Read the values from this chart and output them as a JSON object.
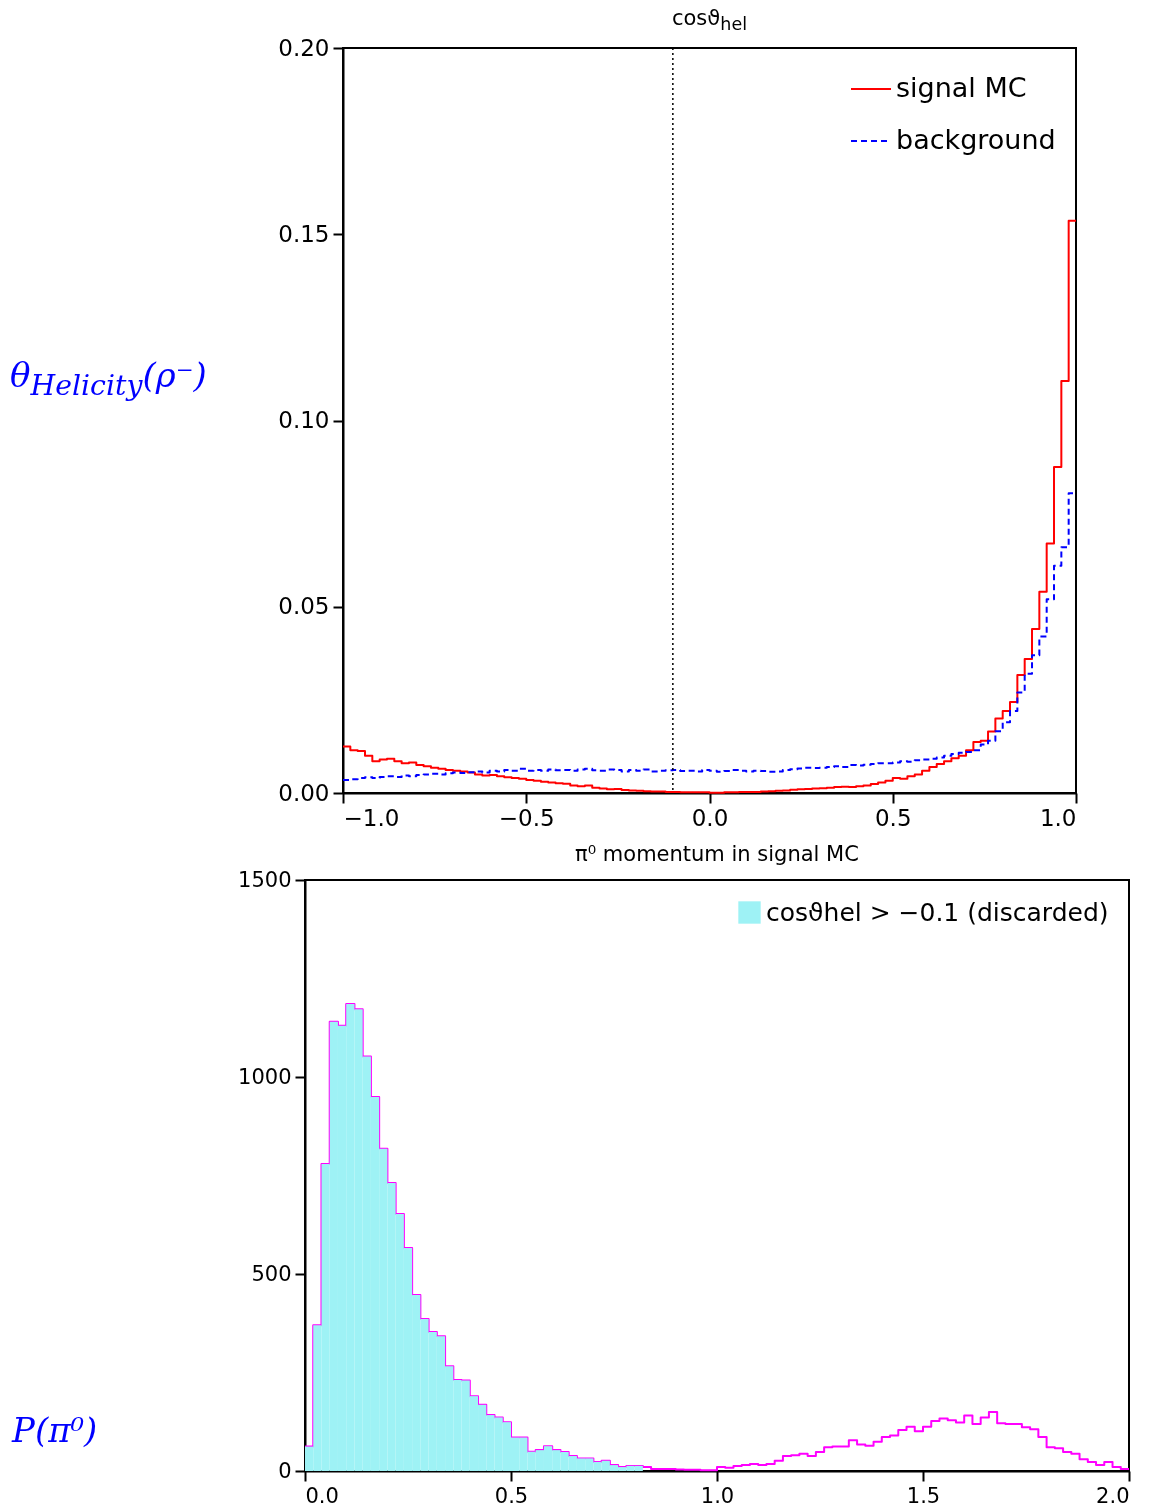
{
  "chart_data": [
    {
      "type": "histogram",
      "title": "cosϑ$_{hel}$",
      "ylabel": "θ$_{Helicity}$(ρ⁻)",
      "bins": [
        -1,
        -0.98,
        -0.96,
        -0.94,
        -0.92,
        -0.9,
        -0.88,
        -0.86,
        -0.84,
        -0.82,
        -0.8,
        -0.78,
        -0.76,
        -0.74,
        -0.72,
        -0.7,
        -0.68,
        -0.66,
        -0.64,
        -0.62,
        -0.6,
        -0.58,
        -0.56,
        -0.54,
        -0.52,
        -0.5,
        -0.48,
        -0.46,
        -0.44,
        -0.42,
        -0.4,
        -0.38,
        -0.36,
        -0.34,
        -0.32,
        -0.3,
        -0.28,
        -0.26,
        -0.24,
        -0.22,
        -0.2,
        -0.18,
        -0.16,
        -0.14,
        -0.12,
        -0.1,
        -0.08,
        -0.06,
        -0.04,
        -0.02,
        0,
        0.02,
        0.04,
        0.06,
        0.08,
        0.1,
        0.12,
        0.14,
        0.16,
        0.18,
        0.2,
        0.22,
        0.24,
        0.26,
        0.28,
        0.3,
        0.32,
        0.34,
        0.36,
        0.38,
        0.4,
        0.42,
        0.44,
        0.46,
        0.48,
        0.5,
        0.52,
        0.54,
        0.56,
        0.58,
        0.6,
        0.62,
        0.64,
        0.66,
        0.68,
        0.7,
        0.72,
        0.74,
        0.76,
        0.78,
        0.8,
        0.82,
        0.84,
        0.86,
        0.88,
        0.9,
        0.92,
        0.94,
        0.96,
        0.98,
        1
      ],
      "series": [
        {
          "name": "signal MC",
          "color": "#ff0000",
          "line_style": "solid",
          "values": [
            0.0125,
            0.0115,
            0.0113,
            0.01,
            0.0085,
            0.009,
            0.0092,
            0.0085,
            0.008,
            0.0082,
            0.0075,
            0.0072,
            0.0068,
            0.0065,
            0.0062,
            0.006,
            0.0058,
            0.0055,
            0.005,
            0.0047,
            0.0048,
            0.0045,
            0.0042,
            0.004,
            0.0038,
            0.0035,
            0.0033,
            0.003,
            0.0028,
            0.0026,
            0.0025,
            0.002,
            0.0018,
            0.002,
            0.0014,
            0.0012,
            0.001,
            0.0011,
            0.0008,
            0.0007,
            0.0006,
            0.0005,
            0.0004,
            0.0004,
            0.0003,
            0.0003,
            0.0002,
            0.0002,
            0.0002,
            0.0002,
            0.0001,
            0.0001,
            0.0002,
            0.0002,
            0.0003,
            0.0003,
            0.0003,
            0.0004,
            0.0005,
            0.0006,
            0.0007,
            0.0009,
            0.001,
            0.0011,
            0.0012,
            0.0013,
            0.0014,
            0.0016,
            0.0017,
            0.0016,
            0.0018,
            0.002,
            0.0024,
            0.0028,
            0.0033,
            0.004,
            0.0038,
            0.0045,
            0.005,
            0.006,
            0.007,
            0.0078,
            0.0085,
            0.0093,
            0.01,
            0.0115,
            0.0137,
            0.014,
            0.0165,
            0.02,
            0.022,
            0.0244,
            0.0317,
            0.036,
            0.044,
            0.054,
            0.067,
            0.0875,
            0.1106,
            0.1536
          ]
        },
        {
          "name": "background",
          "color": "#0000ff",
          "line_style": "dashed",
          "values": [
            0.0035,
            0.0037,
            0.004,
            0.0042,
            0.004,
            0.0043,
            0.0045,
            0.0043,
            0.0047,
            0.0045,
            0.0048,
            0.005,
            0.0052,
            0.005,
            0.0053,
            0.0055,
            0.0054,
            0.0056,
            0.0058,
            0.0055,
            0.006,
            0.0058,
            0.0062,
            0.006,
            0.0065,
            0.006,
            0.0062,
            0.006,
            0.0063,
            0.0061,
            0.0062,
            0.006,
            0.0063,
            0.0065,
            0.0061,
            0.006,
            0.0063,
            0.0062,
            0.0058,
            0.0062,
            0.006,
            0.0063,
            0.0058,
            0.006,
            0.0061,
            0.0062,
            0.0059,
            0.006,
            0.0058,
            0.0062,
            0.006,
            0.0057,
            0.0059,
            0.0062,
            0.006,
            0.0058,
            0.006,
            0.0059,
            0.0057,
            0.0058,
            0.0062,
            0.0064,
            0.0066,
            0.0068,
            0.0067,
            0.0068,
            0.007,
            0.0072,
            0.007,
            0.0075,
            0.0074,
            0.0076,
            0.0078,
            0.008,
            0.008,
            0.0082,
            0.0085,
            0.0084,
            0.0088,
            0.009,
            0.0092,
            0.0095,
            0.01,
            0.0105,
            0.0108,
            0.011,
            0.0115,
            0.013,
            0.014,
            0.0166,
            0.019,
            0.022,
            0.027,
            0.032,
            0.037,
            0.042,
            0.052,
            0.061,
            0.066,
            0.0805
          ]
        }
      ],
      "xlim": [
        -1,
        1
      ],
      "xticks": [
        {
          "value": -1,
          "label": "−1.0"
        },
        {
          "value": -0.5,
          "label": "−0.5"
        },
        {
          "value": 0,
          "label": "0.0"
        },
        {
          "value": 0.5,
          "label": "0.5"
        },
        {
          "value": 1,
          "label": "1.0"
        }
      ],
      "ylim": [
        0,
        0.2
      ],
      "yticks": [
        {
          "value": 0,
          "label": "0.00"
        },
        {
          "value": 0.05,
          "label": "0.05"
        },
        {
          "value": 0.1,
          "label": "0.10"
        },
        {
          "value": 0.15,
          "label": "0.15"
        },
        {
          "value": 0.2,
          "label": "0.20"
        }
      ],
      "ref_lines": [
        {
          "axis": "x",
          "value": -0.1,
          "color": "#000000",
          "line_style": "dotted"
        }
      ],
      "legend": "top right"
    },
    {
      "type": "histogram",
      "title": "π⁰ momentum in signal MC",
      "ylabel": "P(π⁰)",
      "bins": [
        0,
        0.02,
        0.04,
        0.06,
        0.08,
        0.1,
        0.12,
        0.14,
        0.16,
        0.18,
        0.2,
        0.22,
        0.24,
        0.26,
        0.28,
        0.3,
        0.32,
        0.34,
        0.36,
        0.38,
        0.4,
        0.42,
        0.44,
        0.46,
        0.48,
        0.5,
        0.52,
        0.54,
        0.56,
        0.58,
        0.6,
        0.62,
        0.64,
        0.66,
        0.68,
        0.7,
        0.72,
        0.74,
        0.76,
        0.78,
        0.8,
        0.82,
        0.84,
        0.86,
        0.88,
        0.9,
        0.92,
        0.94,
        0.96,
        0.98,
        1,
        1.02,
        1.04,
        1.06,
        1.08,
        1.1,
        1.12,
        1.14,
        1.16,
        1.18,
        1.2,
        1.22,
        1.24,
        1.26,
        1.28,
        1.3,
        1.32,
        1.34,
        1.36,
        1.38,
        1.4,
        1.42,
        1.44,
        1.46,
        1.48,
        1.5,
        1.52,
        1.54,
        1.56,
        1.58,
        1.6,
        1.62,
        1.64,
        1.66,
        1.68,
        1.7,
        1.72,
        1.74,
        1.76,
        1.78,
        1.8,
        1.82,
        1.84,
        1.86,
        1.88,
        1.9,
        1.92,
        1.94,
        1.96,
        1.98,
        2
      ],
      "series": [
        {
          "color": "#ff00ff",
          "line_style": "solid",
          "values": [
            62,
            370,
            779,
            1140,
            1130,
            1185,
            1172,
            1052,
            949,
            818,
            731,
            652,
            566,
            447,
            386,
            353,
            342,
            266,
            231,
            230,
            190,
            168,
            142,
            136,
            124,
            85,
            85,
            49,
            53,
            63,
            53,
            48,
            38,
            32,
            32,
            23,
            26,
            15,
            10,
            13,
            13,
            10,
            5,
            5,
            5,
            4,
            3,
            3,
            2,
            2,
            10,
            8,
            13,
            15,
            18,
            15,
            18,
            26,
            38,
            40,
            44,
            38,
            48,
            60,
            62,
            62,
            78,
            67,
            64,
            74,
            86,
            90,
            104,
            112,
            101,
            112,
            127,
            133,
            129,
            123,
            141,
            119,
            136,
            150,
            121,
            119,
            119,
            111,
            106,
            86,
            60,
            58,
            48,
            44,
            30,
            23,
            15,
            23,
            10,
            5
          ]
        },
        {
          "name": "cosϑhel > −0.1 (discarded)",
          "color": "#9ef2f5",
          "values": [
            62,
            370,
            779,
            1140,
            1130,
            1185,
            1172,
            1052,
            949,
            818,
            731,
            652,
            566,
            447,
            386,
            353,
            342,
            266,
            231,
            230,
            190,
            168,
            142,
            136,
            124,
            85,
            85,
            49,
            53,
            63,
            53,
            48,
            38,
            32,
            32,
            23,
            26,
            15,
            10,
            13,
            13,
            null,
            null,
            null,
            null,
            null,
            null,
            null,
            null,
            null,
            null,
            null,
            null,
            null,
            null,
            null,
            null,
            null,
            null,
            null,
            null,
            null,
            null,
            null,
            null,
            null,
            null,
            null,
            null,
            null,
            null,
            null,
            null,
            null,
            null,
            null,
            null,
            null,
            null,
            null,
            null,
            null,
            null,
            null,
            null,
            null,
            null,
            null,
            null,
            null,
            null,
            null,
            null,
            null,
            null,
            null,
            null,
            null,
            null,
            null
          ]
        }
      ],
      "xlim": [
        0,
        2
      ],
      "xticks": [
        {
          "value": 0,
          "label": "0.0"
        },
        {
          "value": 0.5,
          "label": "0.5"
        },
        {
          "value": 1,
          "label": "1.0"
        },
        {
          "value": 1.5,
          "label": "1.5"
        },
        {
          "value": 2,
          "label": "2.0"
        }
      ],
      "ylim": [
        0,
        1500
      ],
      "yticks": [
        0,
        500,
        1000,
        1500
      ],
      "legend": "top right"
    }
  ]
}
